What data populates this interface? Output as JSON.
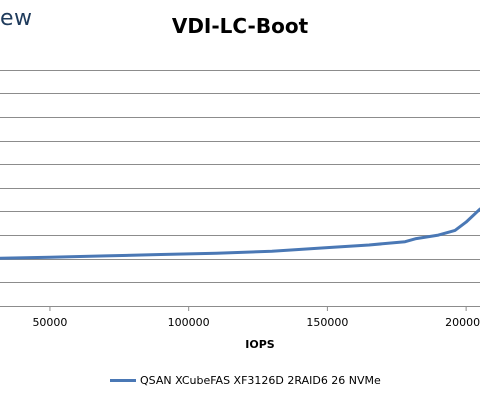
{
  "logo_fragment": "ew",
  "chart_data": {
    "type": "line",
    "title": "VDI-LC-Boot",
    "xlabel": "IOPS",
    "ylabel": "",
    "xlim": [
      32000,
      205000
    ],
    "ylim": [
      0,
      11
    ],
    "grid": "horizontal",
    "legend_position": "bottom",
    "x_ticks": [
      "50000",
      "100000",
      "150000",
      "200000"
    ],
    "x_tick_values": [
      50000,
      100000,
      150000,
      200000
    ],
    "y_gridlines": [
      1,
      2,
      3,
      4,
      5,
      6,
      7,
      8,
      9,
      10
    ],
    "series": [
      {
        "name": "QSAN XCubeFAS XF3126D 2RAID6 26 NVMe",
        "color": "#4a78b5",
        "x": [
          32000,
          50000,
          70000,
          90000,
          110000,
          130000,
          150000,
          165000,
          178000,
          182000,
          190000,
          196000,
          200000,
          205000
        ],
        "y": [
          2.02,
          2.06,
          2.12,
          2.18,
          2.23,
          2.32,
          2.47,
          2.58,
          2.72,
          2.85,
          3.0,
          3.2,
          3.55,
          4.1
        ]
      }
    ]
  }
}
